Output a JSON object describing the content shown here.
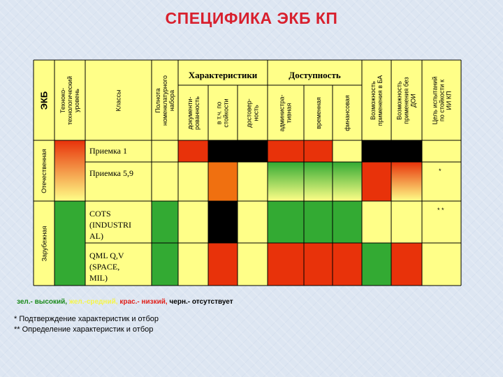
{
  "title": "СПЕЦИФИКА ЭКБ КП",
  "col_headers": {
    "ekb": "ЭКБ",
    "tech": "Техноко-\nтехнологический\nуровень",
    "classes": "Классы",
    "completeness": "Полнота\nноменклатурного\nнабора",
    "group_char": "Характеристики",
    "documented": "документи-\nрованность",
    "incl_resist": "в т.ч. по\nстойкости",
    "reliability": "достовер-\nность",
    "group_avail": "Доступность",
    "admin": "администра-\nтивная",
    "temporal": "временная",
    "financial": "финансовая",
    "use_ba": "Возможность\nприменения в БА",
    "use_no_doi": "Возможность\nприменения без\nДОИ",
    "test_goals": "Цель испытаний\nпо стойкости к\nИИ КП"
  },
  "row_groups": {
    "domestic": "Отечественная",
    "foreign": "Зарубежная"
  },
  "rows": [
    {
      "label": "Приемка 1",
      "note": ""
    },
    {
      "label": "Приемка 5,9",
      "note": "*"
    },
    {
      "label": "COTS\n(INDUSTRI\nAL)",
      "note": "* *"
    },
    {
      "label": "QML Q,V\n(SPACE,\nMIL)",
      "note": ""
    }
  ],
  "colors": {
    "green": "#33aa33",
    "yellow": "#ffff88",
    "red": "#e8320a",
    "black": "#000000",
    "orange": "#f07010"
  },
  "legend": {
    "green": "зел.- высокий,",
    "yellow": "жел.-средний,",
    "red": "крас.- низкий,",
    "black": "черн.- отсутствует"
  },
  "footnotes": [
    "*  Подтверждение характеристик и отбор",
    "** Определение характеристик и отбор"
  ]
}
